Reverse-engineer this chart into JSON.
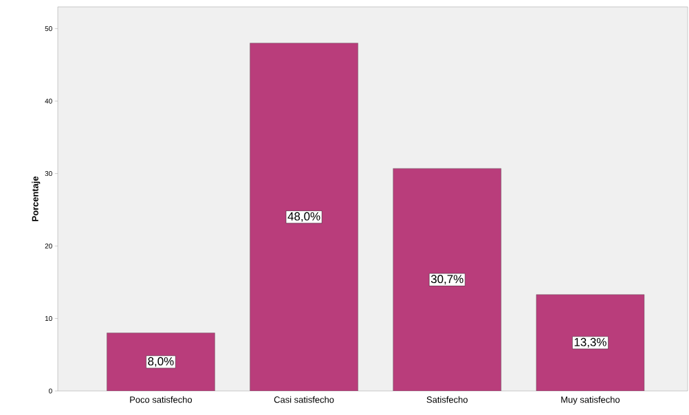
{
  "chart_data": {
    "type": "bar",
    "ylabel": "Porcentaje",
    "categories": [
      "Poco satisfecho",
      "Casi satisfecho",
      "Satisfecho",
      "Muy satisfecho"
    ],
    "values": [
      8.0,
      48.0,
      30.7,
      13.3
    ],
    "value_labels": [
      "8,0%",
      "48,0%",
      "30,7%",
      "13,3%"
    ],
    "color": "#b93d7b",
    "ylim": [
      0,
      53
    ],
    "yticks": [
      0,
      10,
      20,
      30,
      40,
      50
    ],
    "grid": false
  }
}
